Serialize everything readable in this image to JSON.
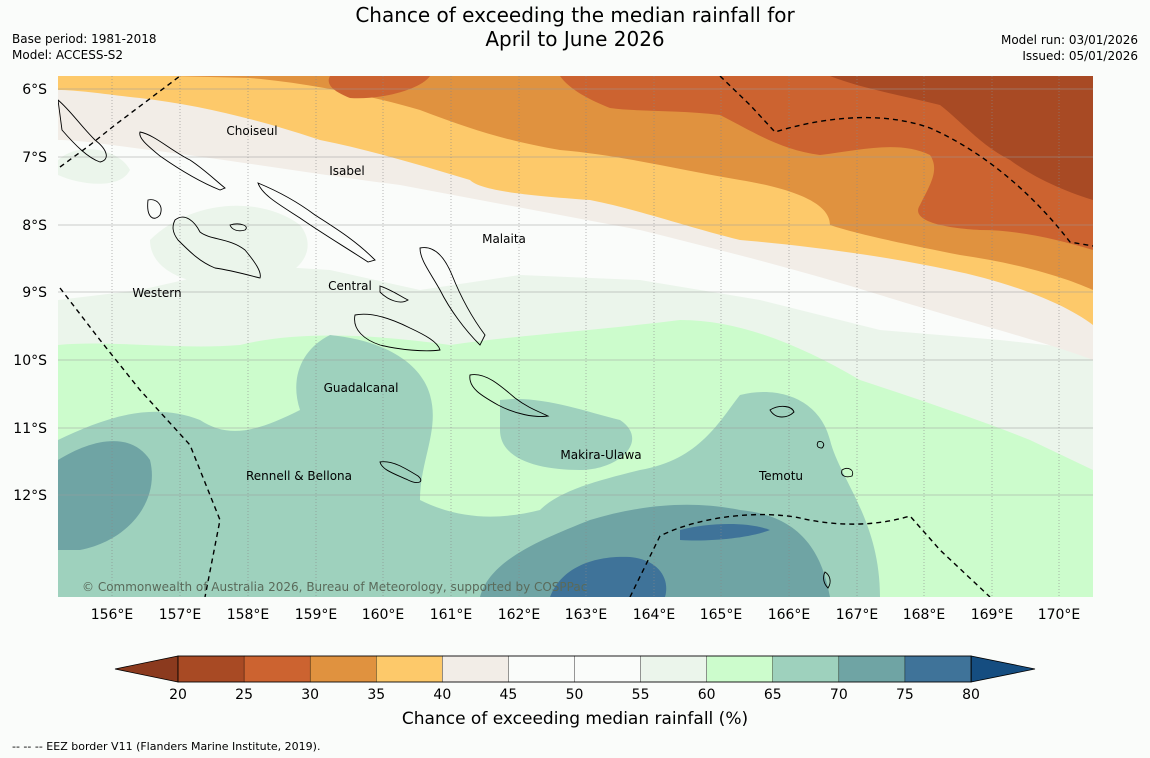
{
  "title": {
    "line1": "Chance of exceeding the median rainfall for",
    "line2": "April to June 2026"
  },
  "meta_left": {
    "base_period": "Base period: 1981-2018",
    "model": "Model: ACCESS-S2"
  },
  "meta_right": {
    "model_run": "Model run: 03/01/2026",
    "issued": "Issued: 05/01/2026"
  },
  "map": {
    "lat_labels": [
      "6°S",
      "7°S",
      "8°S",
      "9°S",
      "10°S",
      "11°S",
      "12°S"
    ],
    "lon_labels": [
      "156°E",
      "157°E",
      "158°E",
      "159°E",
      "160°E",
      "161°E",
      "162°E",
      "163°E",
      "164°E",
      "165°E",
      "166°E",
      "167°E",
      "168°E",
      "169°E",
      "170°E"
    ],
    "places": [
      {
        "name": "Choiseul"
      },
      {
        "name": "Isabel"
      },
      {
        "name": "Malaita"
      },
      {
        "name": "Western"
      },
      {
        "name": "Central"
      },
      {
        "name": "Guadalcanal"
      },
      {
        "name": "Makira-Ulawa"
      },
      {
        "name": "Rennell & Bellona"
      },
      {
        "name": "Temotu"
      }
    ],
    "copyright": "© Commonwealth of Australia 2026, Bureau of Meteorology, supported by COSPPac"
  },
  "colorbar": {
    "ticks": [
      "20",
      "25",
      "30",
      "35",
      "40",
      "45",
      "50",
      "55",
      "60",
      "65",
      "70",
      "75",
      "80"
    ],
    "colors": [
      "#a84a24",
      "#cc6330",
      "#e0923f",
      "#fdc96a",
      "#f2ede7",
      "#fafcfa",
      "#fafcfa",
      "#ebf5eb",
      "#ccfccc",
      "#9ed1bd",
      "#6fa4a4",
      "#3f7399",
      "#154d80"
    ],
    "label": "Chance of exceeding median rainfall (%)"
  },
  "footer": "--  --  -- EEZ border V11 (Flanders Marine Institute, 2019)."
}
